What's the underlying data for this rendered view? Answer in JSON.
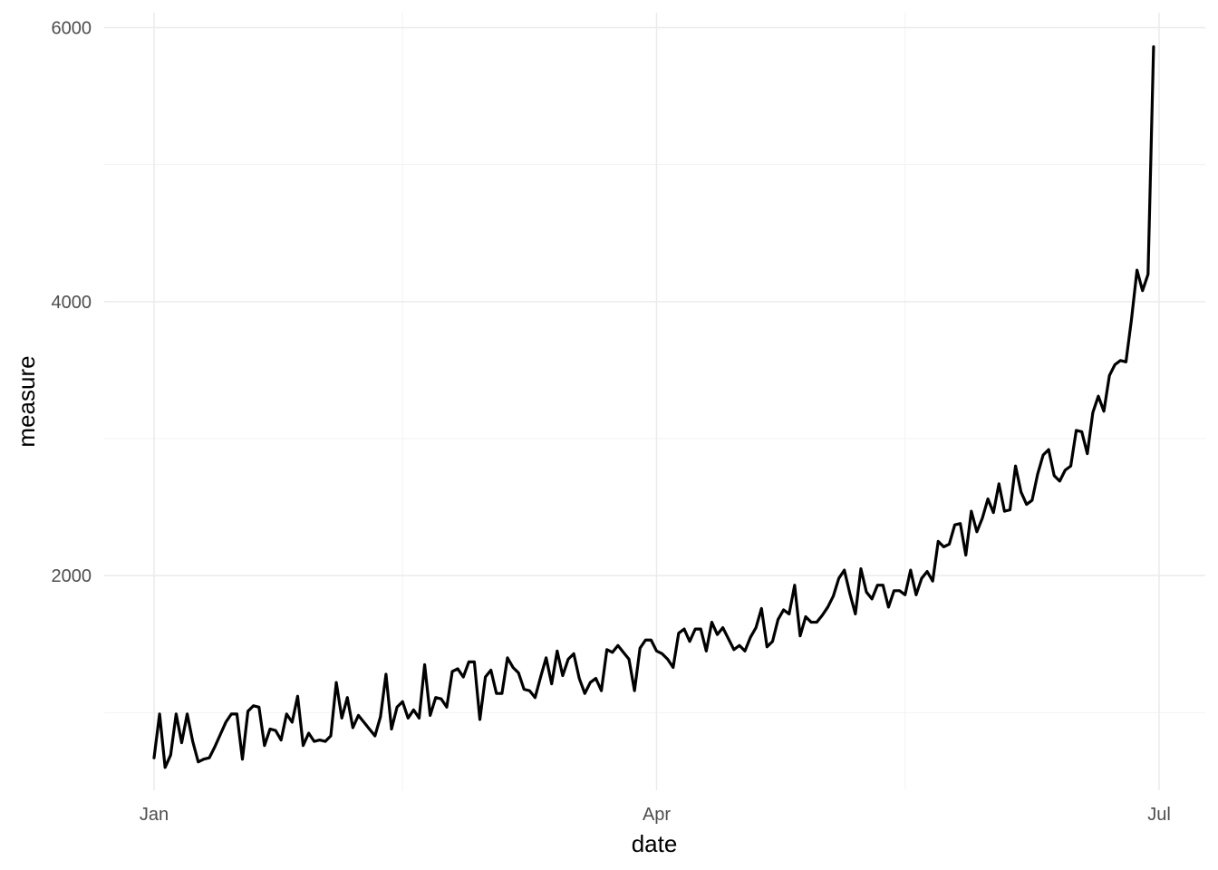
{
  "chart_data": {
    "type": "line",
    "title": "",
    "xlabel": "date",
    "ylabel": "measure",
    "xlim": [
      "2024-01-01",
      "2024-07-01"
    ],
    "ylim": [
      0,
      6000
    ],
    "x_ticks": [
      {
        "date": "2024-01-01",
        "label": "Jan"
      },
      {
        "date": "2024-04-01",
        "label": "Apr"
      },
      {
        "date": "2024-07-01",
        "label": "Jul"
      }
    ],
    "x_minor_ticks": [
      "2024-02-15",
      "2024-05-16"
    ],
    "y_ticks": [
      2000,
      4000,
      6000
    ],
    "y_minor_ticks": [
      1000,
      3000,
      5000
    ],
    "grid": true,
    "legend": "none",
    "series": [
      {
        "color": "#000000",
        "x_start": "2024-01-01",
        "x_step_days": 1,
        "values": [
          670,
          990,
          600,
          690,
          990,
          780,
          990,
          790,
          640,
          660,
          670,
          750,
          840,
          930,
          990,
          990,
          660,
          1010,
          1050,
          1040,
          760,
          880,
          870,
          800,
          990,
          930,
          1120,
          760,
          850,
          790,
          800,
          790,
          830,
          1220,
          960,
          1110,
          890,
          980,
          930,
          880,
          830,
          970,
          1280,
          880,
          1040,
          1080,
          960,
          1020,
          960,
          1350,
          980,
          1110,
          1100,
          1040,
          1300,
          1320,
          1260,
          1370,
          1370,
          950,
          1260,
          1310,
          1140,
          1140,
          1400,
          1330,
          1290,
          1170,
          1160,
          1110,
          1260,
          1400,
          1210,
          1450,
          1270,
          1390,
          1430,
          1250,
          1140,
          1220,
          1250,
          1160,
          1460,
          1440,
          1490,
          1440,
          1390,
          1160,
          1470,
          1530,
          1530,
          1450,
          1430,
          1390,
          1330,
          1580,
          1610,
          1520,
          1610,
          1610,
          1450,
          1660,
          1570,
          1620,
          1540,
          1460,
          1490,
          1450,
          1550,
          1620,
          1760,
          1480,
          1520,
          1680,
          1750,
          1720,
          1930,
          1560,
          1700,
          1660,
          1660,
          1710,
          1770,
          1850,
          1980,
          2040,
          1870,
          1720,
          2050,
          1880,
          1830,
          1930,
          1930,
          1770,
          1890,
          1890,
          1860,
          2040,
          1860,
          1980,
          2030,
          1960,
          2250,
          2210,
          2230,
          2370,
          2380,
          2150,
          2470,
          2320,
          2420,
          2560,
          2460,
          2670,
          2470,
          2480,
          2800,
          2610,
          2520,
          2550,
          2740,
          2880,
          2920,
          2730,
          2690,
          2770,
          2800,
          3060,
          3050,
          2890,
          3190,
          3310,
          3200,
          3460,
          3540,
          3570,
          3560,
          3870,
          4230,
          4080,
          4200,
          5860
        ]
      }
    ]
  }
}
